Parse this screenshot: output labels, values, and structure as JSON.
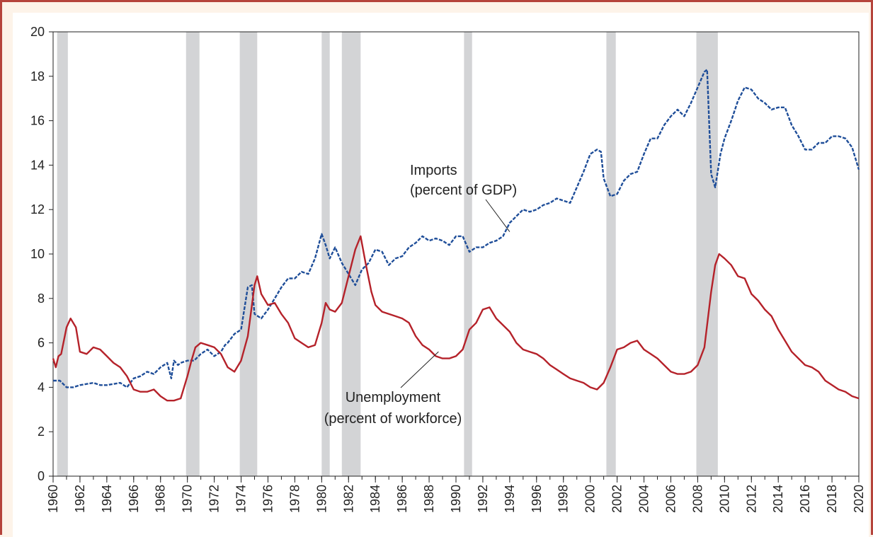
{
  "chart_data": {
    "type": "line",
    "title": "",
    "xlabel": "",
    "ylabel": "",
    "xlim": [
      1960,
      2020
    ],
    "ylim": [
      0,
      20
    ],
    "y_ticks": [
      0,
      2,
      4,
      6,
      8,
      10,
      12,
      14,
      16,
      18,
      20
    ],
    "y_tick_labels": [
      "0",
      "2",
      "4",
      "6",
      "8",
      "10",
      "12",
      "14",
      "16",
      "18",
      "20"
    ],
    "x_ticks": [
      1960,
      1962,
      1964,
      1966,
      1968,
      1970,
      1972,
      1974,
      1976,
      1978,
      1980,
      1982,
      1984,
      1986,
      1988,
      1990,
      1992,
      1994,
      1996,
      1998,
      2000,
      2002,
      2004,
      2006,
      2008,
      2010,
      2012,
      2014,
      2016,
      2018,
      2020
    ],
    "x_tick_labels": [
      "1960",
      "1962",
      "1964",
      "1966",
      "1968",
      "1970",
      "1972",
      "1974",
      "1976",
      "1978",
      "1980",
      "1982",
      "1984",
      "1986",
      "1988",
      "1990",
      "1992",
      "1994",
      "1996",
      "1998",
      "2000",
      "2002",
      "2004",
      "2006",
      "2008",
      "2010",
      "2012",
      "2014",
      "2016",
      "2018",
      "2020"
    ],
    "grid": false,
    "recessions": [
      [
        1960.3,
        1961.1
      ],
      [
        1969.9,
        1970.9
      ],
      [
        1973.9,
        1975.2
      ],
      [
        1980.0,
        1980.6
      ],
      [
        1981.5,
        1982.9
      ],
      [
        1990.6,
        1991.2
      ],
      [
        2001.2,
        2001.9
      ],
      [
        2007.9,
        2009.5
      ]
    ],
    "series": [
      {
        "name": "Imports",
        "color": "#1f4e99",
        "style": "dashed",
        "x": [
          1960.0,
          1960.5,
          1961.0,
          1961.5,
          1962.0,
          1963.0,
          1963.5,
          1964.0,
          1965.0,
          1965.5,
          1966.0,
          1966.5,
          1967.0,
          1967.5,
          1968.0,
          1968.5,
          1968.8,
          1969.0,
          1969.3,
          1969.5,
          1970.0,
          1970.5,
          1971.0,
          1971.5,
          1972.0,
          1972.5,
          1972.8,
          1973.0,
          1973.5,
          1974.0,
          1974.5,
          1974.8,
          1975.0,
          1975.5,
          1976.0,
          1976.5,
          1977.0,
          1977.5,
          1978.0,
          1978.5,
          1979.0,
          1979.5,
          1980.0,
          1980.3,
          1980.6,
          1981.0,
          1981.5,
          1982.0,
          1982.5,
          1983.0,
          1983.5,
          1984.0,
          1984.5,
          1985.0,
          1985.5,
          1986.0,
          1986.5,
          1987.0,
          1987.5,
          1988.0,
          1988.5,
          1989.0,
          1989.5,
          1990.0,
          1990.5,
          1991.0,
          1991.5,
          1992.0,
          1992.5,
          1993.0,
          1993.5,
          1994.0,
          1994.5,
          1995.0,
          1995.5,
          1996.0,
          1996.5,
          1997.0,
          1997.5,
          1998.0,
          1998.5,
          1999.0,
          1999.5,
          2000.0,
          2000.5,
          2000.8,
          2001.0,
          2001.5,
          2002.0,
          2002.5,
          2003.0,
          2003.5,
          2004.0,
          2004.5,
          2005.0,
          2005.5,
          2006.0,
          2006.5,
          2007.0,
          2007.5,
          2008.0,
          2008.5,
          2008.7,
          2009.0,
          2009.3,
          2009.7,
          2010.0,
          2010.5,
          2011.0,
          2011.5,
          2012.0,
          2012.5,
          2013.0,
          2013.5,
          2014.0,
          2014.5,
          2015.0,
          2015.5,
          2016.0,
          2016.5,
          2017.0,
          2017.5,
          2018.0,
          2018.5,
          2019.0,
          2019.5,
          2020.0
        ],
        "values": [
          4.3,
          4.3,
          4.0,
          4.0,
          4.1,
          4.2,
          4.1,
          4.1,
          4.2,
          4.0,
          4.4,
          4.5,
          4.7,
          4.6,
          4.9,
          5.1,
          4.4,
          5.2,
          5.0,
          5.1,
          5.2,
          5.2,
          5.5,
          5.7,
          5.4,
          5.6,
          5.9,
          6.0,
          6.4,
          6.6,
          8.5,
          8.6,
          7.3,
          7.1,
          7.5,
          8.0,
          8.5,
          8.9,
          8.9,
          9.2,
          9.1,
          9.8,
          10.9,
          10.4,
          9.8,
          10.3,
          9.6,
          9.1,
          8.6,
          9.3,
          9.6,
          10.2,
          10.1,
          9.5,
          9.8,
          9.9,
          10.3,
          10.5,
          10.8,
          10.6,
          10.7,
          10.6,
          10.4,
          10.8,
          10.8,
          10.1,
          10.3,
          10.3,
          10.5,
          10.6,
          10.8,
          11.4,
          11.7,
          12.0,
          11.9,
          12.0,
          12.2,
          12.3,
          12.5,
          12.4,
          12.3,
          13.0,
          13.7,
          14.5,
          14.7,
          14.6,
          13.4,
          12.6,
          12.7,
          13.3,
          13.6,
          13.7,
          14.5,
          15.2,
          15.2,
          15.8,
          16.2,
          16.5,
          16.2,
          16.8,
          17.5,
          18.2,
          18.3,
          13.6,
          13.0,
          14.5,
          15.2,
          16.0,
          16.9,
          17.5,
          17.4,
          17.0,
          16.8,
          16.5,
          16.6,
          16.6,
          15.8,
          15.3,
          14.7,
          14.7,
          15.0,
          15.0,
          15.3,
          15.3,
          15.2,
          14.8,
          13.8
        ]
      },
      {
        "name": "Unemployment",
        "color": "#b5222a",
        "style": "solid",
        "x": [
          1960.0,
          1960.2,
          1960.4,
          1960.6,
          1961.0,
          1961.3,
          1961.7,
          1962.0,
          1962.5,
          1963.0,
          1963.5,
          1964.0,
          1964.5,
          1965.0,
          1965.5,
          1966.0,
          1966.5,
          1967.0,
          1967.5,
          1968.0,
          1968.5,
          1969.0,
          1969.5,
          1970.0,
          1970.3,
          1970.6,
          1971.0,
          1971.5,
          1972.0,
          1972.5,
          1973.0,
          1973.5,
          1974.0,
          1974.5,
          1975.0,
          1975.2,
          1975.5,
          1976.0,
          1976.5,
          1977.0,
          1977.5,
          1978.0,
          1978.5,
          1979.0,
          1979.5,
          1980.0,
          1980.3,
          1980.6,
          1981.0,
          1981.5,
          1982.0,
          1982.5,
          1982.9,
          1983.3,
          1983.7,
          1984.0,
          1984.5,
          1985.0,
          1985.5,
          1986.0,
          1986.5,
          1987.0,
          1987.5,
          1988.0,
          1988.5,
          1989.0,
          1989.5,
          1990.0,
          1990.5,
          1991.0,
          1991.5,
          1992.0,
          1992.5,
          1993.0,
          1993.5,
          1994.0,
          1994.5,
          1995.0,
          1995.5,
          1996.0,
          1996.5,
          1997.0,
          1997.5,
          1998.0,
          1998.5,
          1999.0,
          1999.5,
          2000.0,
          2000.5,
          2001.0,
          2001.5,
          2002.0,
          2002.5,
          2003.0,
          2003.5,
          2004.0,
          2004.5,
          2005.0,
          2005.5,
          2006.0,
          2006.5,
          2007.0,
          2007.5,
          2008.0,
          2008.5,
          2009.0,
          2009.3,
          2009.6,
          2010.0,
          2010.5,
          2011.0,
          2011.5,
          2012.0,
          2012.5,
          2013.0,
          2013.5,
          2014.0,
          2014.5,
          2015.0,
          2015.5,
          2016.0,
          2016.5,
          2017.0,
          2017.5,
          2018.0,
          2018.5,
          2019.0,
          2019.5,
          2020.0
        ],
        "values": [
          5.3,
          4.9,
          5.4,
          5.5,
          6.7,
          7.1,
          6.7,
          5.6,
          5.5,
          5.8,
          5.7,
          5.4,
          5.1,
          4.9,
          4.5,
          3.9,
          3.8,
          3.8,
          3.9,
          3.6,
          3.4,
          3.4,
          3.5,
          4.5,
          5.2,
          5.8,
          6.0,
          5.9,
          5.8,
          5.5,
          4.9,
          4.7,
          5.2,
          6.3,
          8.6,
          9.0,
          8.2,
          7.7,
          7.8,
          7.3,
          6.9,
          6.2,
          6.0,
          5.8,
          5.9,
          6.9,
          7.8,
          7.5,
          7.4,
          7.8,
          9.0,
          10.2,
          10.8,
          9.5,
          8.3,
          7.7,
          7.4,
          7.3,
          7.2,
          7.1,
          6.9,
          6.3,
          5.9,
          5.7,
          5.4,
          5.3,
          5.3,
          5.4,
          5.7,
          6.6,
          6.9,
          7.5,
          7.6,
          7.1,
          6.8,
          6.5,
          6.0,
          5.7,
          5.6,
          5.5,
          5.3,
          5.0,
          4.8,
          4.6,
          4.4,
          4.3,
          4.2,
          4.0,
          3.9,
          4.2,
          4.9,
          5.7,
          5.8,
          6.0,
          6.1,
          5.7,
          5.5,
          5.3,
          5.0,
          4.7,
          4.6,
          4.6,
          4.7,
          5.0,
          5.8,
          8.3,
          9.5,
          10.0,
          9.8,
          9.5,
          9.0,
          8.9,
          8.2,
          7.9,
          7.5,
          7.2,
          6.6,
          6.1,
          5.6,
          5.3,
          5.0,
          4.9,
          4.7,
          4.3,
          4.1,
          3.9,
          3.8,
          3.6,
          3.5
        ]
      }
    ],
    "annotations": [
      {
        "lines": [
          "Imports",
          "(percent of GDP)"
        ],
        "points_to": "Imports",
        "at": [
          1994.0,
          11.0
        ]
      },
      {
        "lines": [
          "Unemployment",
          "(percent of workforce)"
        ],
        "points_to": "Unemployment",
        "at": [
          1988.7,
          5.6
        ]
      }
    ]
  }
}
